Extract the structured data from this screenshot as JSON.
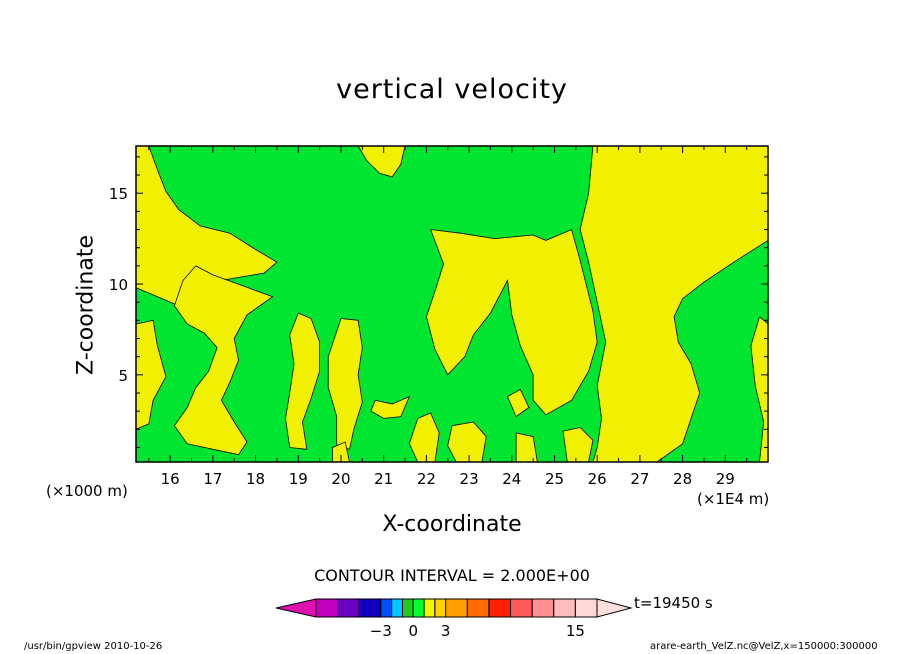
{
  "chart_data": {
    "type": "contour",
    "title": "vertical velocity",
    "xlabel": "X-coordinate",
    "ylabel": "Z-coordinate",
    "x_unit_left": "(×1000 m)",
    "x_unit_right": "(×1E4 m)",
    "xlim": [
      15.2,
      30.0
    ],
    "ylim": [
      0.2,
      17.6
    ],
    "x_ticks": [
      16,
      17,
      18,
      19,
      20,
      21,
      22,
      23,
      24,
      25,
      26,
      27,
      28,
      29
    ],
    "y_ticks": [
      5,
      10,
      15
    ],
    "contour_interval": "CONTOUR INTERVAL = 2.000E+00",
    "time_label": "t=19450 s",
    "colorbar": {
      "labels": [
        {
          "value": -3,
          "text": "−3"
        },
        {
          "value": 0,
          "text": "0"
        },
        {
          "value": 3,
          "text": "3"
        },
        {
          "value": 15,
          "text": "15"
        }
      ],
      "levels": [
        -9,
        -7,
        -5,
        -3,
        -2,
        -1,
        0,
        1,
        2,
        3,
        5,
        7,
        9,
        11,
        13,
        15,
        17
      ],
      "colors": [
        "#c000c0",
        "#6a00c0",
        "#1000c0",
        "#0050ff",
        "#00c8ff",
        "#22cc22",
        "#00ff33",
        "#f6f600",
        "#ffd000",
        "#ffa000",
        "#ff6a00",
        "#ff2000",
        "#ff5a5a",
        "#ff9090",
        "#ffbcbc",
        "#ffd8d8"
      ],
      "low_color": "#e010b0",
      "high_color": "#ffe0e0"
    },
    "region_colors": {
      "positive": "#f0f000",
      "negative": "#00e630"
    },
    "yellow_regions": [
      [
        [
          15.2,
          17.6
        ],
        [
          15.5,
          17.6
        ],
        [
          15.7,
          16.3
        ],
        [
          15.9,
          15.1
        ],
        [
          16.2,
          14.1
        ],
        [
          16.7,
          13.2
        ],
        [
          17.4,
          12.8
        ],
        [
          18.0,
          11.9
        ],
        [
          18.5,
          11.2
        ],
        [
          18.2,
          10.6
        ],
        [
          17.2,
          10.2
        ],
        [
          16.5,
          9.6
        ],
        [
          16.2,
          8.8
        ],
        [
          15.6,
          9.4
        ],
        [
          15.2,
          9.8
        ]
      ],
      [
        [
          16.6,
          11.0
        ],
        [
          16.3,
          10.2
        ],
        [
          16.1,
          8.8
        ],
        [
          16.4,
          7.8
        ],
        [
          16.8,
          7.3
        ],
        [
          17.1,
          6.5
        ],
        [
          16.9,
          5.2
        ],
        [
          16.6,
          4.3
        ],
        [
          16.4,
          3.2
        ],
        [
          16.1,
          2.2
        ],
        [
          16.4,
          1.2
        ],
        [
          17.0,
          0.9
        ],
        [
          17.6,
          0.6
        ],
        [
          17.8,
          1.3
        ],
        [
          17.5,
          2.4
        ],
        [
          17.2,
          3.6
        ],
        [
          17.4,
          4.6
        ],
        [
          17.6,
          5.8
        ],
        [
          17.5,
          7.0
        ],
        [
          17.8,
          8.3
        ],
        [
          18.4,
          9.3
        ],
        [
          17.7,
          9.9
        ],
        [
          17.0,
          10.5
        ]
      ],
      [
        [
          15.2,
          7.8
        ],
        [
          15.6,
          8.0
        ],
        [
          15.7,
          6.6
        ],
        [
          15.9,
          4.9
        ],
        [
          15.6,
          3.6
        ],
        [
          15.5,
          2.3
        ],
        [
          15.2,
          2.0
        ]
      ],
      [
        [
          19.0,
          8.4
        ],
        [
          19.3,
          8.1
        ],
        [
          19.5,
          6.8
        ],
        [
          19.5,
          5.2
        ],
        [
          19.3,
          3.7
        ],
        [
          19.1,
          2.4
        ],
        [
          19.2,
          0.9
        ],
        [
          18.8,
          1.0
        ],
        [
          18.7,
          2.6
        ],
        [
          18.8,
          4.0
        ],
        [
          18.9,
          5.6
        ],
        [
          18.8,
          7.2
        ]
      ],
      [
        [
          20.0,
          8.1
        ],
        [
          20.4,
          8.0
        ],
        [
          20.5,
          6.5
        ],
        [
          20.4,
          5.0
        ],
        [
          20.5,
          3.5
        ],
        [
          20.3,
          2.0
        ],
        [
          20.2,
          0.9
        ],
        [
          19.9,
          1.1
        ],
        [
          19.9,
          2.7
        ],
        [
          19.7,
          4.3
        ],
        [
          19.7,
          6.0
        ]
      ],
      [
        [
          20.4,
          17.6
        ],
        [
          21.5,
          17.6
        ],
        [
          21.4,
          16.6
        ],
        [
          21.2,
          15.9
        ],
        [
          20.9,
          16.1
        ],
        [
          20.6,
          16.8
        ]
      ],
      [
        [
          20.8,
          3.6
        ],
        [
          21.2,
          3.4
        ],
        [
          21.6,
          3.8
        ],
        [
          21.4,
          2.7
        ],
        [
          21.0,
          2.6
        ],
        [
          20.7,
          3.0
        ]
      ],
      [
        [
          22.1,
          13.0
        ],
        [
          22.8,
          12.8
        ],
        [
          23.6,
          12.5
        ],
        [
          24.5,
          12.7
        ],
        [
          24.8,
          12.4
        ],
        [
          25.4,
          13.0
        ],
        [
          25.6,
          11.3
        ],
        [
          25.9,
          8.5
        ],
        [
          26.0,
          6.8
        ],
        [
          25.8,
          5.2
        ],
        [
          25.4,
          3.6
        ],
        [
          24.8,
          2.8
        ],
        [
          24.5,
          3.6
        ],
        [
          24.5,
          5.0
        ],
        [
          24.2,
          6.6
        ],
        [
          24.0,
          8.3
        ],
        [
          23.9,
          10.2
        ],
        [
          23.5,
          8.4
        ],
        [
          23.1,
          7.2
        ],
        [
          22.9,
          6.0
        ],
        [
          22.5,
          5.0
        ],
        [
          22.2,
          6.4
        ],
        [
          22.0,
          8.2
        ],
        [
          22.2,
          9.6
        ],
        [
          22.4,
          11.1
        ]
      ],
      [
        [
          25.9,
          17.6
        ],
        [
          30.0,
          17.6
        ],
        [
          30.0,
          12.4
        ],
        [
          29.2,
          11.2
        ],
        [
          28.5,
          10.1
        ],
        [
          28.0,
          9.2
        ],
        [
          27.8,
          8.2
        ],
        [
          27.9,
          6.8
        ],
        [
          28.2,
          5.6
        ],
        [
          28.4,
          4.0
        ],
        [
          28.2,
          2.6
        ],
        [
          28.0,
          1.2
        ],
        [
          27.4,
          0.2
        ],
        [
          25.9,
          0.2
        ],
        [
          26.0,
          1.0
        ],
        [
          26.1,
          2.6
        ],
        [
          26.0,
          4.4
        ],
        [
          26.2,
          6.8
        ],
        [
          26.0,
          9.0
        ],
        [
          25.8,
          11.2
        ],
        [
          25.6,
          13.0
        ],
        [
          25.8,
          15.0
        ]
      ],
      [
        [
          29.8,
          0.2
        ],
        [
          30.0,
          0.2
        ],
        [
          30.0,
          7.8
        ],
        [
          29.8,
          8.2
        ],
        [
          29.6,
          6.6
        ],
        [
          29.7,
          4.4
        ],
        [
          29.9,
          2.4
        ]
      ],
      [
        [
          22.6,
          2.2
        ],
        [
          23.1,
          2.4
        ],
        [
          23.4,
          1.6
        ],
        [
          23.3,
          0.2
        ],
        [
          22.7,
          0.2
        ],
        [
          22.5,
          1.1
        ]
      ],
      [
        [
          24.1,
          1.8
        ],
        [
          24.5,
          1.6
        ],
        [
          24.6,
          0.2
        ],
        [
          24.1,
          0.2
        ]
      ],
      [
        [
          25.2,
          1.9
        ],
        [
          25.6,
          2.1
        ],
        [
          25.9,
          1.4
        ],
        [
          25.8,
          0.2
        ],
        [
          25.3,
          0.2
        ]
      ],
      [
        [
          21.8,
          2.6
        ],
        [
          22.1,
          2.9
        ],
        [
          22.3,
          1.8
        ],
        [
          22.2,
          0.2
        ],
        [
          21.8,
          0.2
        ],
        [
          21.6,
          1.2
        ]
      ],
      [
        [
          19.8,
          1.0
        ],
        [
          20.1,
          1.3
        ],
        [
          20.2,
          0.2
        ],
        [
          19.8,
          0.2
        ]
      ],
      [
        [
          23.9,
          3.8
        ],
        [
          24.2,
          4.2
        ],
        [
          24.4,
          3.2
        ],
        [
          24.1,
          2.7
        ]
      ]
    ]
  },
  "footer": {
    "left": "/usr/bin/gpview  2010-10-26",
    "right": "arare-earth_VelZ.nc@VelZ,x=150000:300000"
  }
}
